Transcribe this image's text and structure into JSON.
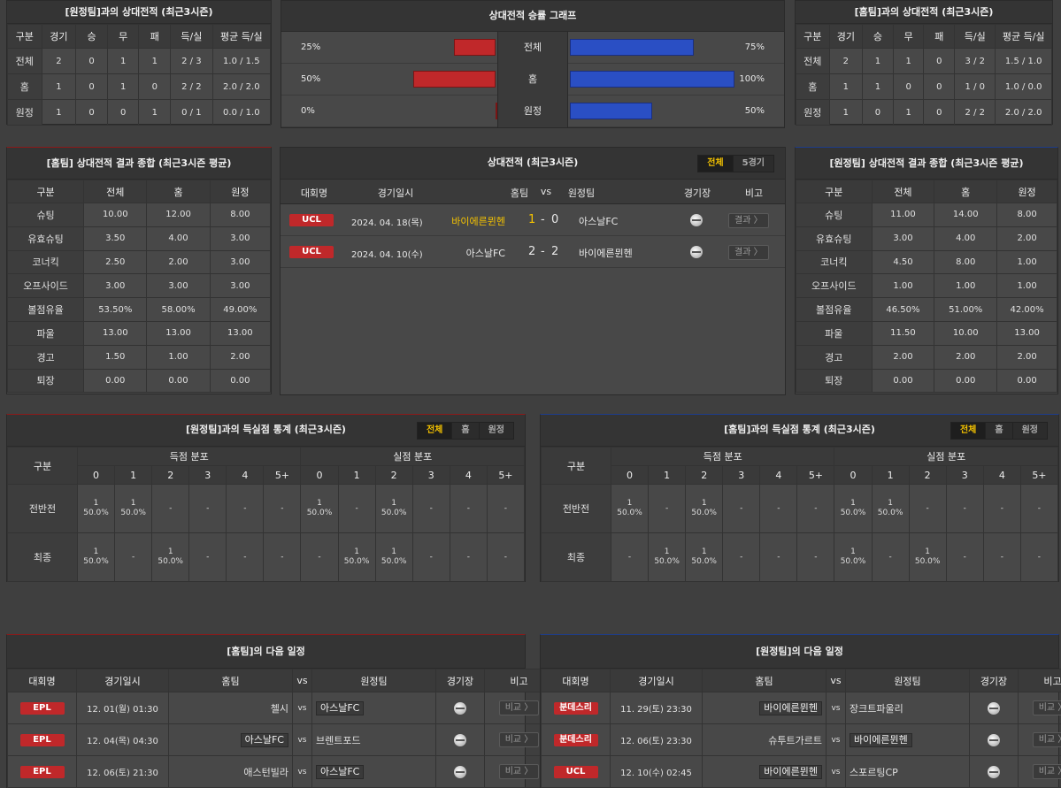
{
  "h2h_away": {
    "title": "[원정팀]과의 상대전적 (최근3시즌)",
    "headers": [
      "구분",
      "경기",
      "승",
      "무",
      "패",
      "득/실",
      "평균 득/실"
    ],
    "rows": [
      [
        "전체",
        "2",
        "0",
        "1",
        "1",
        "2 / 3",
        "1.0 / 1.5"
      ],
      [
        "홈",
        "1",
        "0",
        "1",
        "0",
        "2 / 2",
        "2.0 / 2.0"
      ],
      [
        "원정",
        "1",
        "0",
        "0",
        "1",
        "0 / 1",
        "0.0 / 1.0"
      ]
    ]
  },
  "h2h_home": {
    "title": "[홈팀]과의 상대전적 (최근3시즌)",
    "headers": [
      "구분",
      "경기",
      "승",
      "무",
      "패",
      "득/실",
      "평균 득/실"
    ],
    "rows": [
      [
        "전체",
        "2",
        "1",
        "1",
        "0",
        "3 / 2",
        "1.5 / 1.0"
      ],
      [
        "홈",
        "1",
        "1",
        "0",
        "0",
        "1 / 0",
        "1.0 / 0.0"
      ],
      [
        "원정",
        "1",
        "0",
        "1",
        "0",
        "2 / 2",
        "2.0 / 2.0"
      ]
    ]
  },
  "graph": {
    "title": "상대전적 승률 그래프",
    "rows": [
      {
        "label": "전체",
        "left_pct": "25%",
        "left_value": 25,
        "right_pct": "75%",
        "right_value": 75
      },
      {
        "label": "홈",
        "left_pct": "50%",
        "left_value": 50,
        "right_pct": "100%",
        "right_value": 100
      },
      {
        "label": "원정",
        "left_pct": "0%",
        "left_value": 0,
        "right_pct": "50%",
        "right_value": 50
      }
    ],
    "colors": {
      "left": "#c0282a",
      "right": "#2a4fc4"
    }
  },
  "home_summary": {
    "title": "[홈팀] 상대전적 결과 종합 (최근3시즌 평균)",
    "headers": [
      "구분",
      "전체",
      "홈",
      "원정"
    ],
    "rows": [
      [
        "슈팅",
        "10.00",
        "12.00",
        "8.00"
      ],
      [
        "유효슈팅",
        "3.50",
        "4.00",
        "3.00"
      ],
      [
        "코너킥",
        "2.50",
        "2.00",
        "3.00"
      ],
      [
        "오프사이드",
        "3.00",
        "3.00",
        "3.00"
      ],
      [
        "볼점유율",
        "53.50%",
        "58.00%",
        "49.00%"
      ],
      [
        "파울",
        "13.00",
        "13.00",
        "13.00"
      ],
      [
        "경고",
        "1.50",
        "1.00",
        "2.00"
      ],
      [
        "퇴장",
        "0.00",
        "0.00",
        "0.00"
      ]
    ]
  },
  "away_summary": {
    "title": "[원정팀] 상대전적 결과 종합 (최근3시즌 평균)",
    "headers": [
      "구분",
      "전체",
      "홈",
      "원정"
    ],
    "rows": [
      [
        "슈팅",
        "11.00",
        "14.00",
        "8.00"
      ],
      [
        "유효슈팅",
        "3.00",
        "4.00",
        "2.00"
      ],
      [
        "코너킥",
        "4.50",
        "8.00",
        "1.00"
      ],
      [
        "오프사이드",
        "1.00",
        "1.00",
        "1.00"
      ],
      [
        "볼점유율",
        "46.50%",
        "51.00%",
        "42.00%"
      ],
      [
        "파울",
        "11.50",
        "10.00",
        "13.00"
      ],
      [
        "경고",
        "2.00",
        "2.00",
        "2.00"
      ],
      [
        "퇴장",
        "0.00",
        "0.00",
        "0.00"
      ]
    ]
  },
  "matches": {
    "title": "상대전적 (최근3시즌)",
    "tabs": [
      "전체",
      "5경기"
    ],
    "headers": {
      "league": "대회명",
      "date": "경기일시",
      "home": "홈팀",
      "vs": "vs",
      "away": "원정팀",
      "venue": "경기장",
      "note": "비고"
    },
    "rows": [
      {
        "league": "UCL",
        "date": "2024. 04. 18(목)",
        "home": "바이에른뮌헨",
        "home_score": "1",
        "dash": "-",
        "away_score": "0",
        "away": "아스날FC",
        "btn": "결과 〉"
      },
      {
        "league": "UCL",
        "date": "2024. 04. 10(수)",
        "home": "아스날FC",
        "home_score": "2",
        "dash": "-",
        "away_score": "2",
        "away": "바이에른뮌헨",
        "btn": "결과 〉"
      }
    ],
    "colors": {
      "winner": "#f5c300"
    }
  },
  "goals_away": {
    "title": "[원정팀]과의 득실점 통계 (최근3시즌)",
    "tabs": [
      "전체",
      "홈",
      "원정"
    ],
    "col_label": "구분",
    "scored": "득점 분포",
    "conceded": "실점 분포",
    "cols": [
      "0",
      "1",
      "2",
      "3",
      "4",
      "5+"
    ],
    "rows": [
      {
        "label": "전반전",
        "cells": [
          [
            "1",
            "50.0%"
          ],
          [
            "1",
            "50.0%"
          ],
          [
            "-"
          ],
          [
            "-"
          ],
          [
            "-"
          ],
          [
            "-"
          ],
          [
            "1",
            "50.0%"
          ],
          [
            "-"
          ],
          [
            "1",
            "50.0%"
          ],
          [
            "-"
          ],
          [
            "-"
          ],
          [
            "-"
          ]
        ]
      },
      {
        "label": "최종",
        "cells": [
          [
            "1",
            "50.0%"
          ],
          [
            "-"
          ],
          [
            "1",
            "50.0%"
          ],
          [
            "-"
          ],
          [
            "-"
          ],
          [
            "-"
          ],
          [
            "-"
          ],
          [
            "1",
            "50.0%"
          ],
          [
            "1",
            "50.0%"
          ],
          [
            "-"
          ],
          [
            "-"
          ],
          [
            "-"
          ]
        ]
      }
    ]
  },
  "goals_home": {
    "title": "[홈팀]과의 득실점 통계 (최근3시즌)",
    "tabs": [
      "전체",
      "홈",
      "원정"
    ],
    "col_label": "구분",
    "scored": "득점 분포",
    "conceded": "실점 분포",
    "cols": [
      "0",
      "1",
      "2",
      "3",
      "4",
      "5+"
    ],
    "rows": [
      {
        "label": "전반전",
        "cells": [
          [
            "1",
            "50.0%"
          ],
          [
            "-"
          ],
          [
            "1",
            "50.0%"
          ],
          [
            "-"
          ],
          [
            "-"
          ],
          [
            "-"
          ],
          [
            "1",
            "50.0%"
          ],
          [
            "1",
            "50.0%"
          ],
          [
            "-"
          ],
          [
            "-"
          ],
          [
            "-"
          ],
          [
            "-"
          ]
        ]
      },
      {
        "label": "최종",
        "cells": [
          [
            "-"
          ],
          [
            "1",
            "50.0%"
          ],
          [
            "1",
            "50.0%"
          ],
          [
            "-"
          ],
          [
            "-"
          ],
          [
            "-"
          ],
          [
            "1",
            "50.0%"
          ],
          [
            "-"
          ],
          [
            "1",
            "50.0%"
          ],
          [
            "-"
          ],
          [
            "-"
          ],
          [
            "-"
          ]
        ]
      }
    ]
  },
  "next_home": {
    "title": "[홈팀]의 다음 일정",
    "headers": [
      "대회명",
      "경기일시",
      "홈팀",
      "vs",
      "원정팀",
      "경기장",
      "비고"
    ],
    "rows": [
      {
        "league": "EPL",
        "date": "12. 01(월) 01:30",
        "home": "첼시",
        "away": "아스날FC",
        "boxed": "away",
        "btn": "비교 〉"
      },
      {
        "league": "EPL",
        "date": "12. 04(목) 04:30",
        "home": "아스날FC",
        "away": "브렌트포드",
        "boxed": "home",
        "btn": "비교 〉"
      },
      {
        "league": "EPL",
        "date": "12. 06(토) 21:30",
        "home": "애스턴빌라",
        "away": "아스날FC",
        "boxed": "away",
        "btn": "비교 〉"
      }
    ]
  },
  "next_away": {
    "title": "[원정팀]의 다음 일정",
    "headers": [
      "대회명",
      "경기일시",
      "홈팀",
      "vs",
      "원정팀",
      "경기장",
      "비고"
    ],
    "rows": [
      {
        "league": "분데스리",
        "date": "11. 29(토) 23:30",
        "home": "바이에른뮌헨",
        "away": "장크트파울리",
        "boxed": "home",
        "btn": "비교 〉"
      },
      {
        "league": "분데스리",
        "date": "12. 06(토) 23:30",
        "home": "슈투트가르트",
        "away": "바이에른뮌헨",
        "boxed": "away",
        "btn": "비교 〉"
      },
      {
        "league": "UCL",
        "date": "12. 10(수) 02:45",
        "home": "바이에른뮌헨",
        "away": "스포르팅CP",
        "boxed": "home",
        "btn": "비교 〉"
      }
    ]
  }
}
